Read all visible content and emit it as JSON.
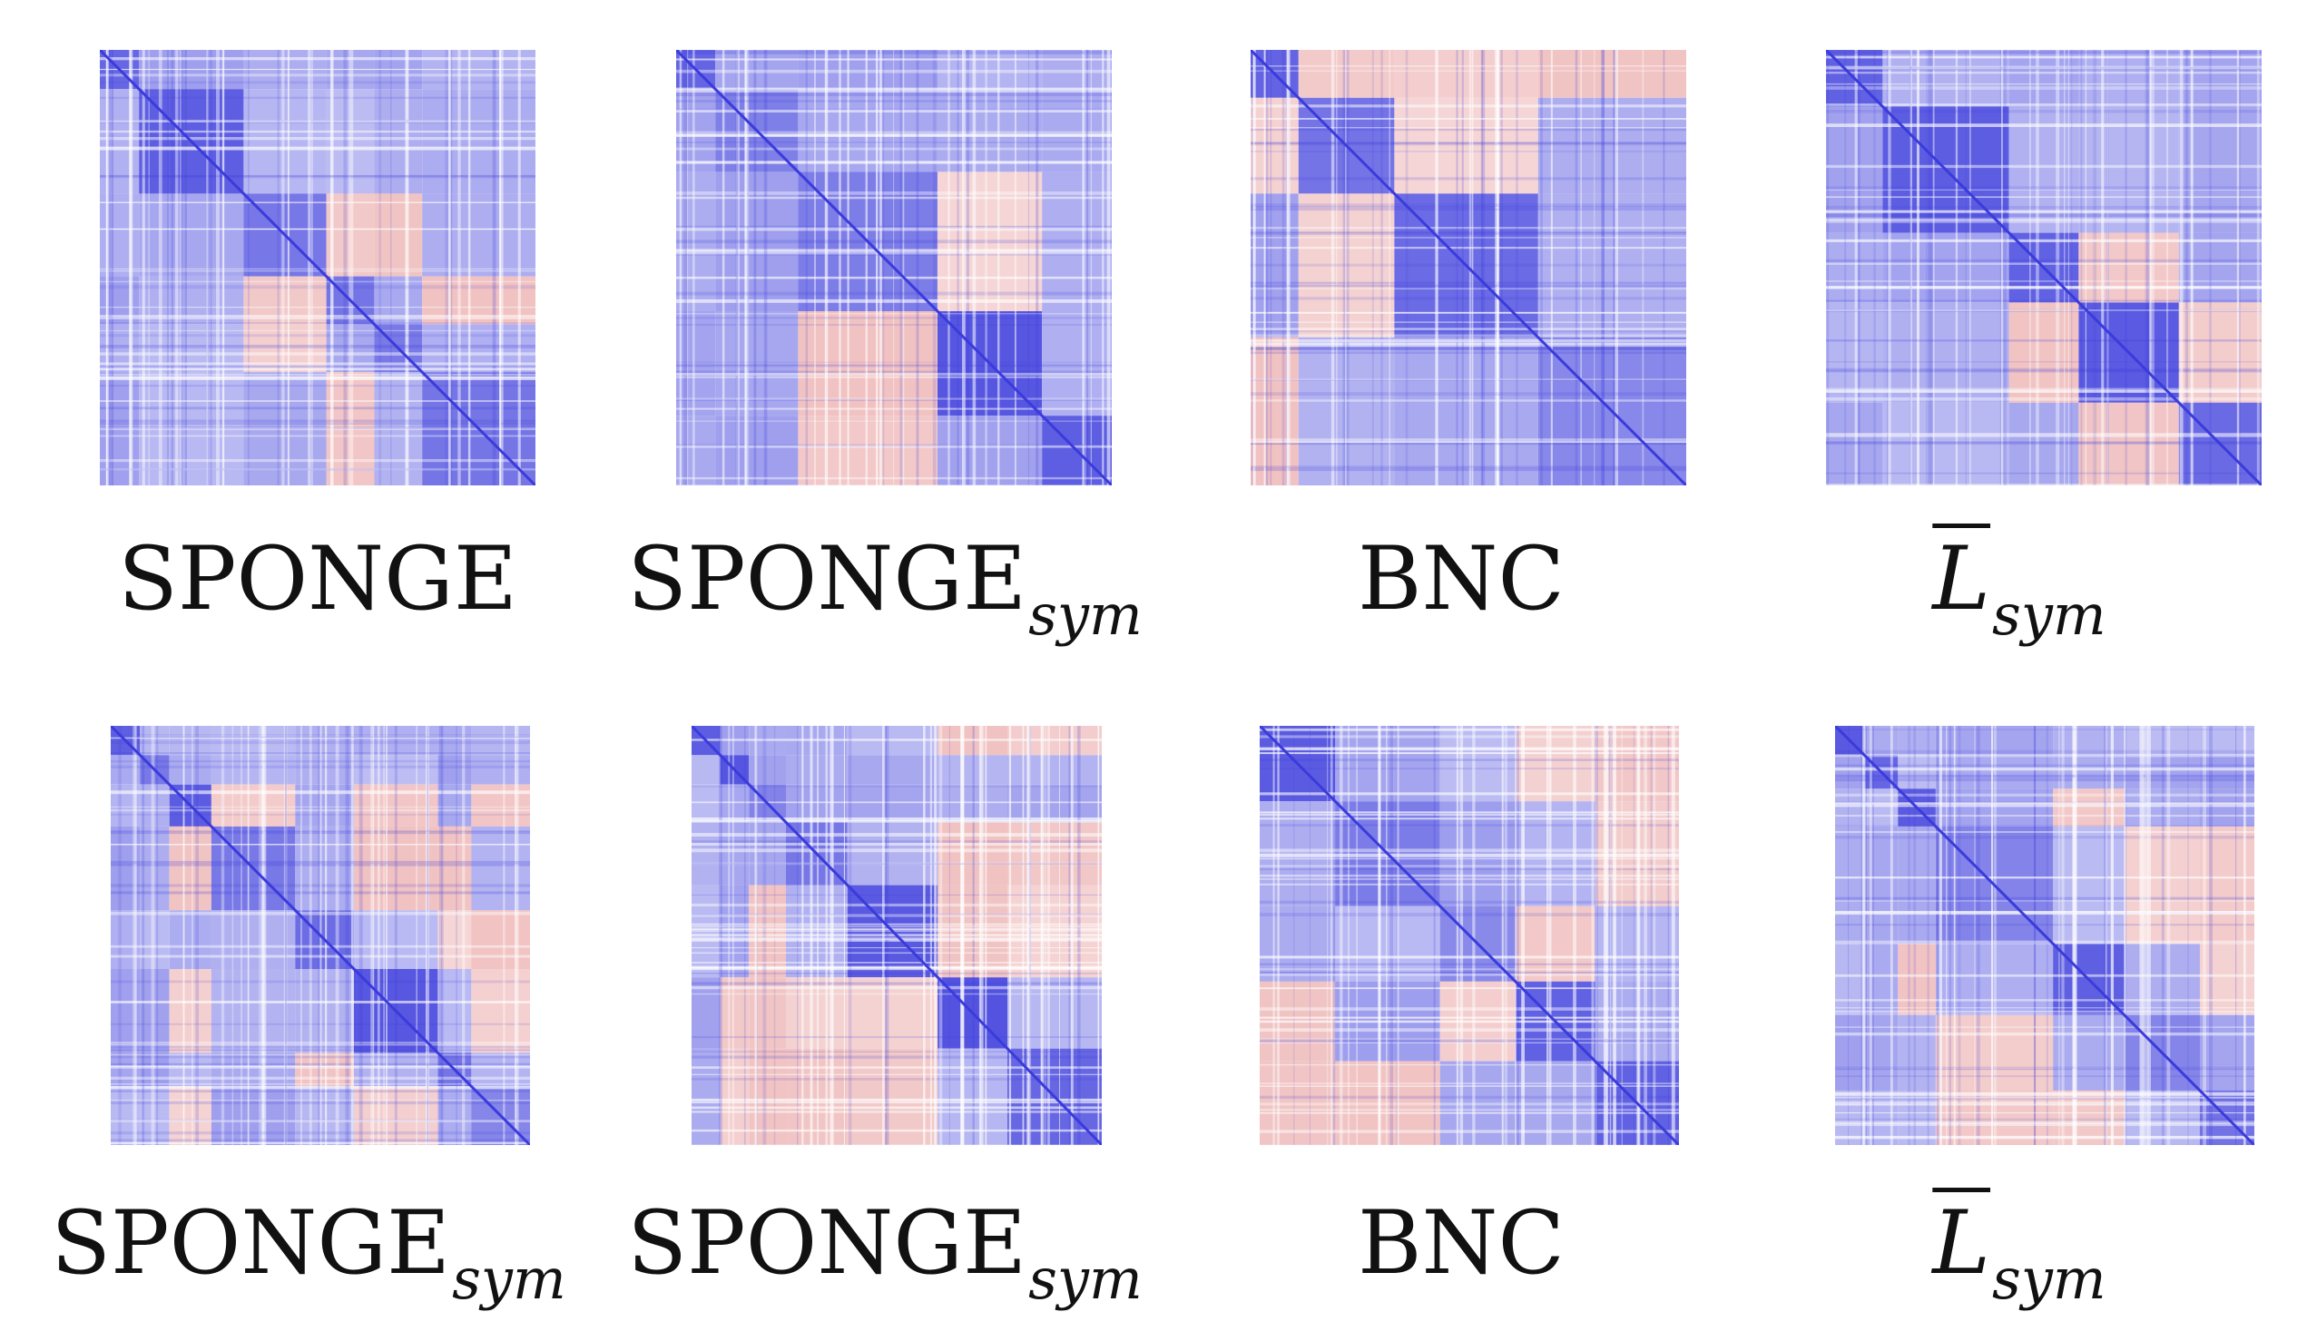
{
  "chart_data": [
    {
      "type": "heatmap",
      "name": "SPONGE",
      "subscript": "",
      "overline": false,
      "blocks": [
        0.09,
        0.33,
        0.52,
        0.63,
        0.74,
        1.0
      ],
      "blockSigns": [
        [
          1,
          1,
          1,
          1,
          1,
          1
        ],
        [
          1,
          1,
          1,
          1,
          1,
          1
        ],
        [
          1,
          1,
          1,
          -1,
          -1,
          1
        ],
        [
          1,
          1,
          -1,
          1,
          1,
          -1
        ],
        [
          1,
          1,
          -1,
          1,
          1,
          1
        ],
        [
          1,
          1,
          1,
          -1,
          1,
          1
        ]
      ],
      "colors": {
        "positive": "#3b3bdc",
        "negative": "#e07a7a"
      }
    },
    {
      "type": "heatmap",
      "name": "SPONGE",
      "subscript": "sym",
      "overline": false,
      "blocks": [
        0.09,
        0.28,
        0.6,
        0.84,
        1.0
      ],
      "blockSigns": [
        [
          1,
          1,
          1,
          1,
          1
        ],
        [
          1,
          1,
          1,
          1,
          1
        ],
        [
          1,
          1,
          1,
          -1,
          1
        ],
        [
          1,
          1,
          -1,
          1,
          1
        ],
        [
          1,
          1,
          -1,
          1,
          1
        ]
      ],
      "colors": {
        "positive": "#3b3bdc",
        "negative": "#e07a7a"
      }
    },
    {
      "type": "heatmap",
      "name": "BNC",
      "subscript": "",
      "overline": false,
      "blocks": [
        0.11,
        0.33,
        0.66,
        1.0
      ],
      "blockSigns": [
        [
          1,
          -1,
          -1,
          -1
        ],
        [
          -1,
          1,
          -1,
          1
        ],
        [
          1,
          -1,
          1,
          1
        ],
        [
          -1,
          1,
          1,
          1
        ]
      ],
      "colors": {
        "positive": "#3b3bdc",
        "negative": "#e07a7a"
      }
    },
    {
      "type": "heatmap",
      "name": "L",
      "subscript": "sym",
      "overline": true,
      "blocks": [
        0.13,
        0.42,
        0.58,
        0.81,
        1.0
      ],
      "blockSigns": [
        [
          1,
          1,
          1,
          1,
          1
        ],
        [
          1,
          1,
          1,
          1,
          1
        ],
        [
          1,
          1,
          1,
          -1,
          1
        ],
        [
          1,
          1,
          -1,
          1,
          -1
        ],
        [
          1,
          1,
          1,
          -1,
          1
        ]
      ],
      "colors": {
        "positive": "#3b3bdc",
        "negative": "#e07a7a"
      }
    },
    {
      "type": "heatmap",
      "name": "SPONGE",
      "subscript": "sym",
      "overline": false,
      "blocks": [
        0.07,
        0.14,
        0.24,
        0.44,
        0.58,
        0.78,
        0.86,
        1.0
      ],
      "blockSigns": [
        [
          1,
          1,
          1,
          1,
          1,
          1,
          1,
          1
        ],
        [
          1,
          1,
          1,
          1,
          1,
          1,
          1,
          1
        ],
        [
          1,
          1,
          1,
          -1,
          1,
          -1,
          1,
          -1
        ],
        [
          1,
          1,
          -1,
          1,
          1,
          -1,
          -1,
          1
        ],
        [
          1,
          1,
          1,
          1,
          1,
          1,
          -1,
          -1
        ],
        [
          1,
          1,
          -1,
          1,
          1,
          1,
          1,
          -1
        ],
        [
          1,
          1,
          1,
          1,
          -1,
          1,
          1,
          1
        ],
        [
          1,
          1,
          -1,
          1,
          1,
          -1,
          1,
          1
        ]
      ],
      "colors": {
        "positive": "#3b3bdc",
        "negative": "#e07a7a"
      }
    },
    {
      "type": "heatmap",
      "name": "SPONGE",
      "subscript": "sym",
      "overline": false,
      "blocks": [
        0.07,
        0.14,
        0.23,
        0.38,
        0.6,
        0.77,
        1.0
      ],
      "blockSigns": [
        [
          1,
          1,
          1,
          1,
          1,
          -1,
          -1
        ],
        [
          1,
          1,
          1,
          1,
          1,
          1,
          1
        ],
        [
          1,
          1,
          1,
          1,
          1,
          1,
          1
        ],
        [
          1,
          1,
          1,
          1,
          1,
          -1,
          -1
        ],
        [
          1,
          1,
          -1,
          1,
          1,
          -1,
          -1
        ],
        [
          1,
          -1,
          -1,
          -1,
          -1,
          1,
          1
        ],
        [
          1,
          -1,
          -1,
          -1,
          -1,
          1,
          1
        ]
      ],
      "colors": {
        "positive": "#3b3bdc",
        "negative": "#e07a7a"
      }
    },
    {
      "type": "heatmap",
      "name": "BNC",
      "subscript": "",
      "overline": false,
      "blocks": [
        0.18,
        0.43,
        0.61,
        0.8,
        1.0
      ],
      "blockSigns": [
        [
          1,
          1,
          1,
          -1,
          -1
        ],
        [
          1,
          1,
          1,
          1,
          -1
        ],
        [
          1,
          1,
          1,
          -1,
          1
        ],
        [
          -1,
          1,
          -1,
          1,
          1
        ],
        [
          -1,
          -1,
          1,
          1,
          1
        ]
      ],
      "colors": {
        "positive": "#3b3bdc",
        "negative": "#e07a7a"
      }
    },
    {
      "type": "heatmap",
      "name": "L",
      "subscript": "sym",
      "overline": true,
      "blocks": [
        0.07,
        0.15,
        0.24,
        0.52,
        0.69,
        0.87,
        1.0
      ],
      "blockSigns": [
        [
          1,
          1,
          1,
          1,
          1,
          1,
          1
        ],
        [
          1,
          1,
          1,
          1,
          1,
          1,
          1
        ],
        [
          1,
          1,
          1,
          1,
          -1,
          1,
          1
        ],
        [
          1,
          1,
          1,
          1,
          1,
          -1,
          -1
        ],
        [
          1,
          1,
          -1,
          1,
          1,
          1,
          -1
        ],
        [
          1,
          1,
          1,
          -1,
          1,
          1,
          1
        ],
        [
          1,
          1,
          1,
          -1,
          -1,
          1,
          1
        ]
      ],
      "colors": {
        "positive": "#3b3bdc",
        "negative": "#e07a7a"
      }
    }
  ]
}
